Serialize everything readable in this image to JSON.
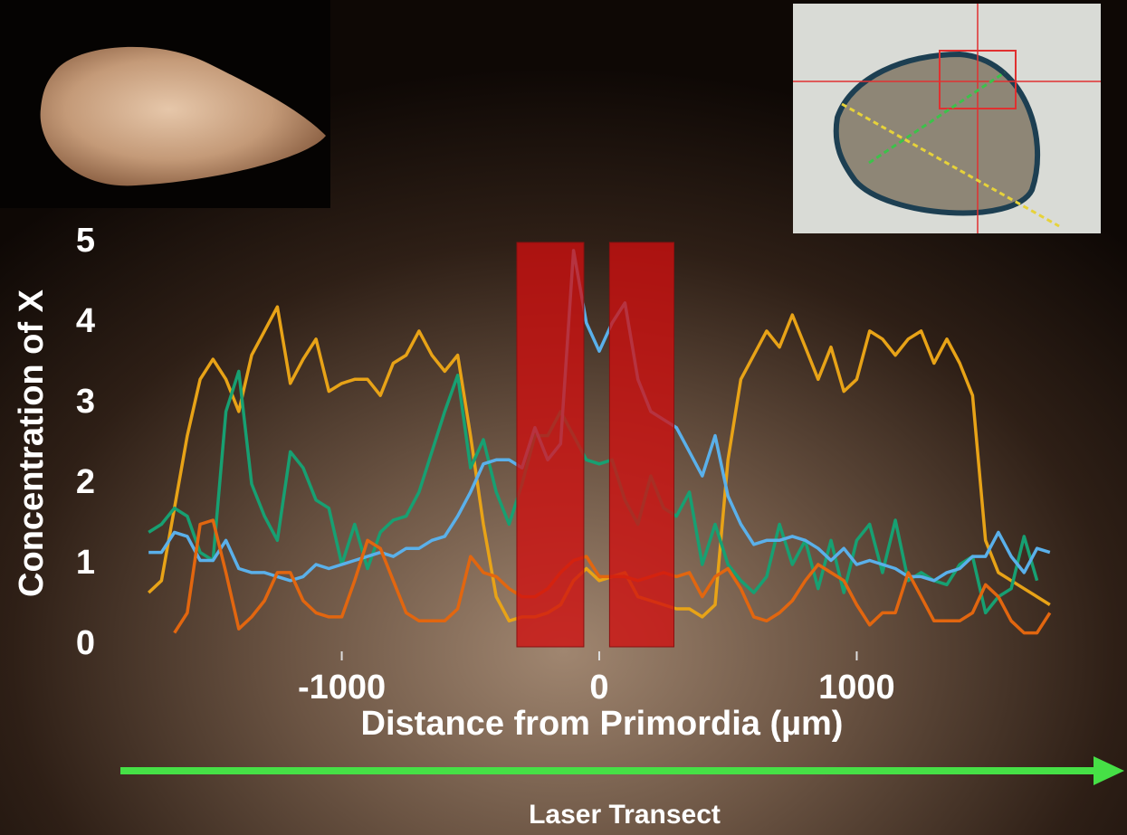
{
  "chart_data": {
    "type": "line",
    "y_label": "Concentration of X",
    "x_label": "Distance from Primordia (µm)",
    "footer": "Laser Transect",
    "xlim": [
      -1800,
      1800
    ],
    "ylim": [
      0,
      5
    ],
    "xticks": [
      -1000,
      0,
      1000
    ],
    "yticks": [
      0,
      1,
      2,
      3,
      4,
      5
    ],
    "highlight_ranges": [
      [
        -320,
        -60
      ],
      [
        40,
        290
      ]
    ],
    "highlight_color": "#d01010",
    "x": [
      -1750,
      -1700,
      -1650,
      -1600,
      -1550,
      -1500,
      -1450,
      -1400,
      -1350,
      -1300,
      -1250,
      -1200,
      -1150,
      -1100,
      -1050,
      -1000,
      -950,
      -900,
      -850,
      -800,
      -750,
      -700,
      -650,
      -600,
      -550,
      -500,
      -450,
      -400,
      -350,
      -300,
      -250,
      -200,
      -150,
      -100,
      -50,
      0,
      50,
      100,
      150,
      200,
      250,
      300,
      350,
      400,
      450,
      500,
      550,
      600,
      650,
      700,
      750,
      800,
      850,
      900,
      950,
      1000,
      1050,
      1100,
      1150,
      1200,
      1250,
      1300,
      1350,
      1400,
      1450,
      1500,
      1550,
      1600,
      1650,
      1700,
      1750
    ],
    "series": [
      {
        "color": "#e8a317",
        "values": [
          0.65,
          0.8,
          1.7,
          2.6,
          3.3,
          3.55,
          3.3,
          2.9,
          3.6,
          3.9,
          4.2,
          3.25,
          3.55,
          3.8,
          3.15,
          3.25,
          3.3,
          3.3,
          3.1,
          3.5,
          3.6,
          3.9,
          3.6,
          3.4,
          3.6,
          2.6,
          1.5,
          0.6,
          0.3,
          0.35,
          0.35,
          0.4,
          0.5,
          0.8,
          0.95,
          0.8,
          0.85,
          0.9,
          0.6,
          0.55,
          0.5,
          0.45,
          0.45,
          0.35,
          0.5,
          2.3,
          3.3,
          3.6,
          3.9,
          3.7,
          4.1,
          3.7,
          3.3,
          3.7,
          3.15,
          3.3,
          3.9,
          3.8,
          3.6,
          3.8,
          3.9,
          3.5,
          3.8,
          3.5,
          3.1,
          1.3,
          0.9,
          0.8,
          0.7,
          0.6,
          0.5
        ]
      },
      {
        "color": "#17a072",
        "values": [
          1.4,
          1.5,
          1.7,
          1.6,
          1.15,
          1.05,
          2.9,
          3.4,
          2.0,
          1.6,
          1.3,
          2.4,
          2.2,
          1.8,
          1.7,
          1.0,
          1.5,
          0.95,
          1.4,
          1.55,
          1.6,
          1.9,
          2.4,
          2.9,
          3.35,
          2.2,
          2.55,
          1.9,
          1.5,
          2.0,
          2.6,
          2.6,
          2.9,
          2.6,
          2.3,
          2.25,
          2.3,
          1.8,
          1.5,
          2.1,
          1.7,
          1.6,
          1.9,
          1.0,
          1.5,
          1.0,
          0.8,
          0.65,
          0.85,
          1.5,
          1.0,
          1.3,
          0.7,
          1.3,
          0.65,
          1.3,
          1.5,
          0.9,
          1.55,
          0.8,
          0.9,
          0.8,
          0.75,
          1.0,
          1.1,
          0.4,
          0.6,
          0.7,
          1.35,
          0.8,
          null
        ]
      },
      {
        "color": "#5ab0ea",
        "values": [
          1.15,
          1.15,
          1.4,
          1.35,
          1.05,
          1.05,
          1.3,
          0.95,
          0.9,
          0.9,
          0.85,
          0.8,
          0.85,
          1.0,
          0.95,
          1.0,
          1.05,
          1.1,
          1.15,
          1.1,
          1.2,
          1.2,
          1.3,
          1.35,
          1.6,
          1.9,
          2.25,
          2.3,
          2.3,
          2.2,
          2.7,
          2.3,
          2.5,
          4.9,
          4.0,
          3.65,
          4.0,
          4.25,
          3.3,
          2.9,
          2.8,
          2.7,
          2.4,
          2.1,
          2.6,
          1.85,
          1.5,
          1.25,
          1.3,
          1.3,
          1.35,
          1.3,
          1.2,
          1.05,
          1.2,
          1.0,
          1.05,
          1.0,
          0.95,
          0.85,
          0.85,
          0.8,
          0.9,
          0.95,
          1.1,
          1.1,
          1.4,
          1.1,
          0.9,
          1.2,
          1.15
        ]
      },
      {
        "color": "#e2660f",
        "values": [
          null,
          null,
          0.15,
          0.4,
          1.5,
          1.55,
          0.9,
          0.2,
          0.35,
          0.55,
          0.9,
          0.9,
          0.55,
          0.4,
          0.35,
          0.35,
          0.8,
          1.3,
          1.2,
          0.8,
          0.4,
          0.3,
          0.3,
          0.3,
          0.45,
          1.1,
          0.9,
          0.85,
          0.7,
          0.6,
          0.6,
          0.7,
          0.9,
          1.05,
          1.1,
          0.85,
          0.85,
          0.85,
          0.8,
          0.85,
          0.9,
          0.85,
          0.9,
          0.6,
          0.85,
          0.95,
          0.7,
          0.35,
          0.3,
          0.4,
          0.55,
          0.8,
          1.0,
          0.9,
          0.8,
          0.5,
          0.25,
          0.4,
          0.4,
          0.9,
          0.6,
          0.3,
          0.3,
          0.3,
          0.4,
          0.75,
          0.6,
          0.3,
          0.15,
          0.15,
          0.4
        ]
      }
    ]
  }
}
